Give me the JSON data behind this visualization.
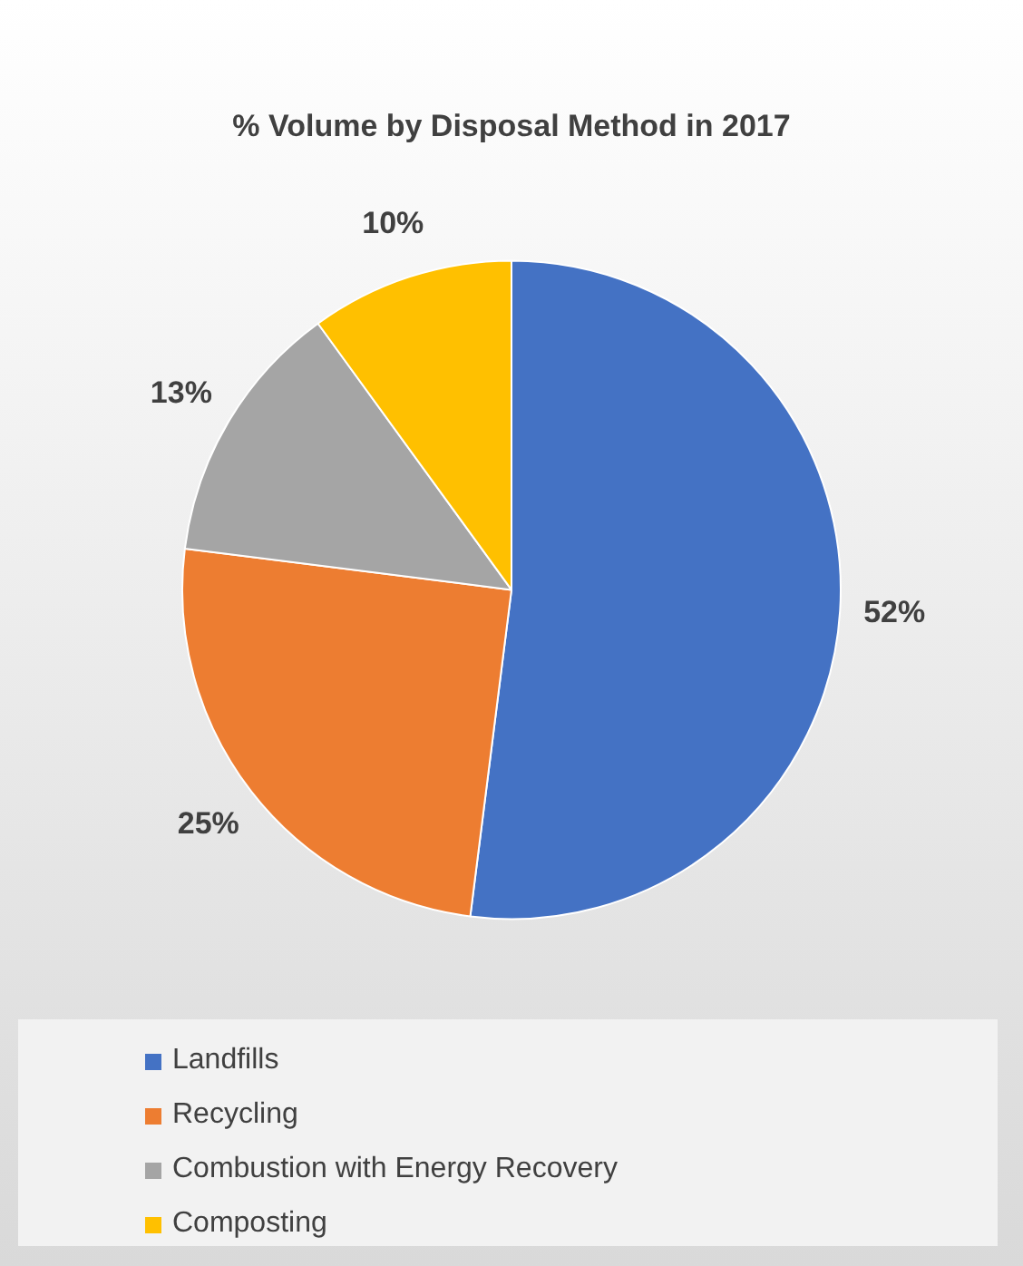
{
  "chart_data": {
    "type": "pie",
    "title": "% Volume by Disposal Method in 2017",
    "categories": [
      "Landfills",
      "Recycling",
      "Combustion with Energy Recovery",
      "Composting"
    ],
    "values": [
      52,
      25,
      13,
      10
    ],
    "colors": [
      "#4472c4",
      "#ed7d31",
      "#a5a5a5",
      "#ffc000"
    ],
    "value_labels": [
      "52%",
      "25%",
      "13%",
      "10%"
    ],
    "legend": "bottom"
  }
}
